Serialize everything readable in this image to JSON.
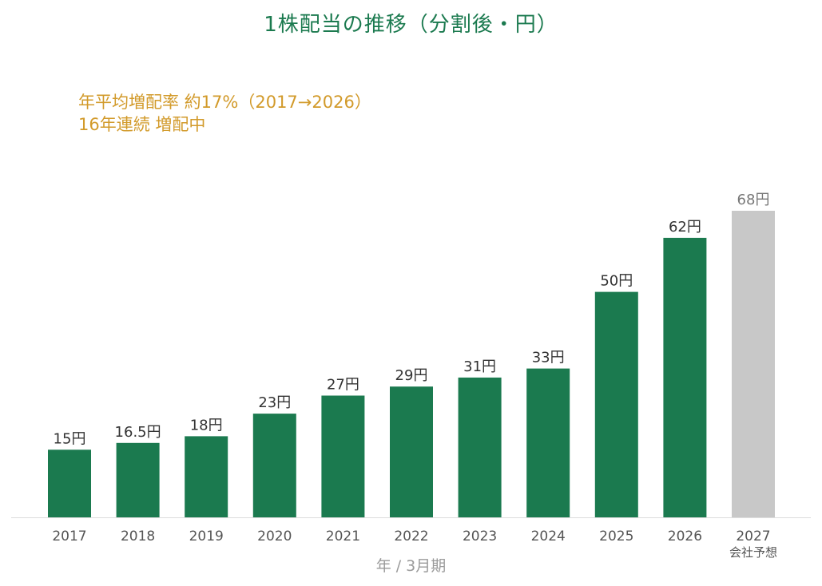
{
  "title": "1株配当の推移（分割後・円）",
  "annotations": {
    "line1": "年平均増配率 約17%（2017→2026）",
    "line2": "16年連続 増配中"
  },
  "colors": {
    "title": "#1b7a4f",
    "bar_actual": "#1b7a4f",
    "bar_forecast": "#c8c8c8",
    "annotation": "#d29a2a",
    "value_label_actual": "#333333",
    "value_label_forecast": "#777777",
    "tick_label": "#555555",
    "axis_line": "#dddddd"
  },
  "chart_data": {
    "type": "bar",
    "title": "1株配当の推移（分割後・円）",
    "xlabel": "年 / 3月期",
    "ylabel": "",
    "ylim": [
      0,
      72
    ],
    "grid": false,
    "legend": "none",
    "unit_suffix": "円",
    "categories": [
      "2017",
      "2018",
      "2019",
      "2020",
      "2021",
      "2022",
      "2023",
      "2024",
      "2025",
      "2026",
      "2027"
    ],
    "category_sublabels": [
      "",
      "",
      "",
      "",
      "",
      "",
      "",
      "",
      "",
      "",
      "会社予想"
    ],
    "values": [
      15,
      16.5,
      18,
      23,
      27,
      29,
      31,
      33,
      50,
      62,
      68
    ],
    "value_labels": [
      "15円",
      "16.5円",
      "18円",
      "23円",
      "27円",
      "29円",
      "31円",
      "33円",
      "50円",
      "62円",
      "68円"
    ],
    "forecast": [
      false,
      false,
      false,
      false,
      false,
      false,
      false,
      false,
      false,
      false,
      true
    ]
  }
}
